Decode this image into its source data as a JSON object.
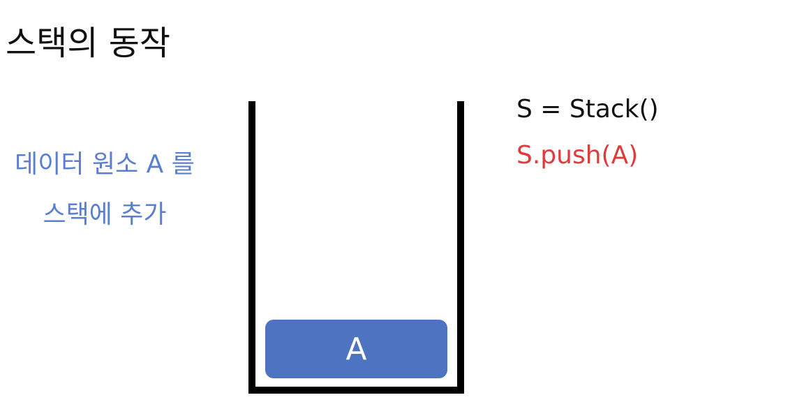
{
  "title": "스택의 동작",
  "description": {
    "line1": "데이터 원소 A 를",
    "line2": "스택에 추가"
  },
  "stack": {
    "elements": [
      "A"
    ]
  },
  "code": {
    "line1": "S = Stack()",
    "line2": "S.push(A)"
  },
  "colors": {
    "description": "#5b7fcf",
    "element": "#4e74c1",
    "highlight_code": "#e03b3b"
  }
}
